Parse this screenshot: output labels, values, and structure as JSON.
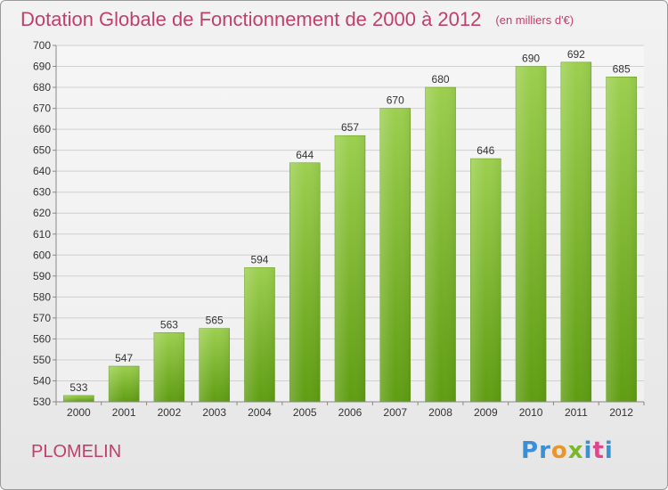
{
  "header": {
    "title": "Dotation Globale de Fonctionnement de 2000 à 2012",
    "unit": "(en milliers d'€)"
  },
  "footer": {
    "commune": "PLOMELIN",
    "brand_letters": [
      "P",
      "r",
      "o",
      "x",
      "i",
      "t",
      "i"
    ],
    "brand_colors": [
      "#3b8fd6",
      "#3b8fd6",
      "#e8962b",
      "#7ab829",
      "#3b8fd6",
      "#d94a8c",
      "#3b8fd6"
    ]
  },
  "chart_data": {
    "type": "bar",
    "categories": [
      "2000",
      "2001",
      "2002",
      "2003",
      "2004",
      "2005",
      "2006",
      "2007",
      "2008",
      "2009",
      "2010",
      "2011",
      "2012"
    ],
    "values": [
      533,
      547,
      563,
      565,
      594,
      644,
      657,
      670,
      680,
      646,
      690,
      692,
      685
    ],
    "ylim": [
      530,
      700
    ],
    "yticks": [
      530,
      540,
      550,
      560,
      570,
      580,
      590,
      600,
      610,
      620,
      630,
      640,
      650,
      660,
      670,
      680,
      690,
      700
    ],
    "grid": true,
    "bar_color": "#7dbd2e"
  }
}
